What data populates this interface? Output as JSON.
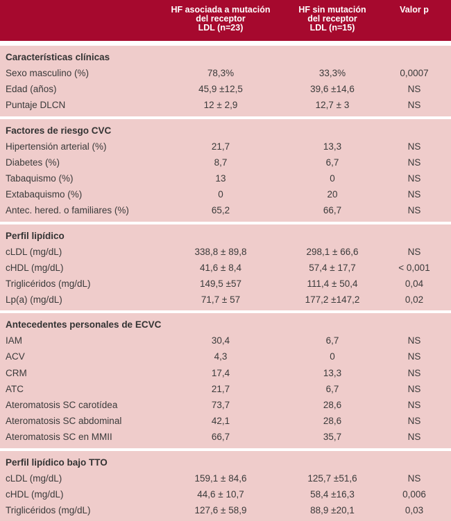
{
  "header": {
    "col1": "",
    "col2_lines": [
      "HF asociada a mutación",
      "del receptor",
      "LDL (n=23)"
    ],
    "col3_lines": [
      "HF sin mutación",
      "del receptor",
      "LDL (n=15)"
    ],
    "col4": "Valor p"
  },
  "sections": [
    {
      "title": "Características clínicas",
      "rows": [
        [
          "Sexo masculino (%)",
          "78,3%",
          "33,3%",
          "0,0007"
        ],
        [
          "Edad (años)",
          "45,9 ±12,5",
          "39,6 ±14,6",
          "NS"
        ],
        [
          "Puntaje DLCN",
          "12 ± 2,9",
          "12,7 ± 3",
          "NS"
        ]
      ]
    },
    {
      "title": "Factores de riesgo CVC",
      "rows": [
        [
          "Hipertensión arterial (%)",
          "21,7",
          "13,3",
          "NS"
        ],
        [
          "Diabetes (%)",
          "8,7",
          "6,7",
          "NS"
        ],
        [
          "Tabaquismo (%)",
          "13",
          "0",
          "NS"
        ],
        [
          "Extabaquismo (%)",
          "0",
          "20",
          "NS"
        ],
        [
          "Antec. hered. o familiares (%)",
          "65,2",
          "66,7",
          "NS"
        ]
      ]
    },
    {
      "title": "Perfil lipídico",
      "rows": [
        [
          "cLDL (mg/dL)",
          "338,8 ± 89,8",
          "298,1 ± 66,6",
          "NS"
        ],
        [
          "cHDL (mg/dL)",
          "41,6 ± 8,4",
          "57,4 ± 17,7",
          "< 0,001"
        ],
        [
          "Triglicéridos (mg/dL)",
          "149,5 ±57",
          "111,4 ± 50,4",
          "0,04"
        ],
        [
          "Lp(a) (mg/dL)",
          "71,7 ± 57",
          "177,2 ±147,2",
          "0,02"
        ]
      ]
    },
    {
      "title": "Antecedentes personales de ECVC",
      "rows": [
        [
          "IAM",
          "30,4",
          "6,7",
          "NS"
        ],
        [
          "ACV",
          "4,3",
          "0",
          "NS"
        ],
        [
          "CRM",
          "17,4",
          "13,3",
          "NS"
        ],
        [
          "ATC",
          "21,7",
          "6,7",
          "NS"
        ],
        [
          "Ateromatosis SC carotídea",
          "73,7",
          "28,6",
          "NS"
        ],
        [
          "Ateromatosis SC abdominal",
          "42,1",
          "28,6",
          "NS"
        ],
        [
          "Ateromatosis SC en MMII",
          "66,7",
          "35,7",
          "NS"
        ]
      ]
    },
    {
      "title": "Perfil lipídico bajo TTO",
      "rows": [
        [
          "cLDL (mg/dL)",
          "159,1 ± 84,6",
          "125,7 ±51,6",
          "NS"
        ],
        [
          "cHDL (mg/dL)",
          "44,6 ± 10,7",
          "58,4 ±16,3",
          "0,006"
        ],
        [
          "Triglicéridos (mg/dL)",
          "127,6 ± 58,9",
          "88,9 ±20,1",
          "0,03"
        ]
      ]
    }
  ],
  "colors": {
    "header_bg": "#a6092e",
    "section_bg": "#efcccb",
    "header_text": "#ffffff"
  }
}
